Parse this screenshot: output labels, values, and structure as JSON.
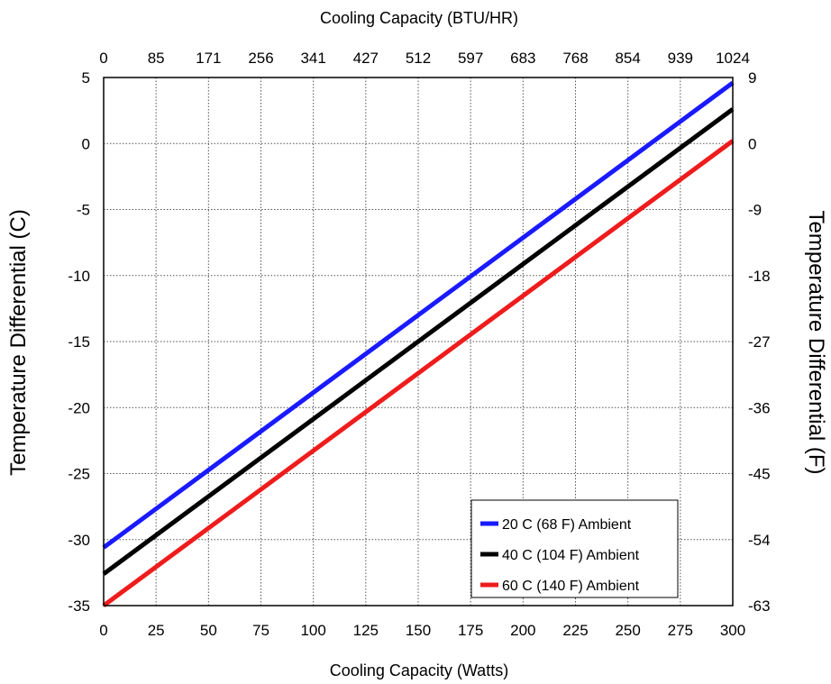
{
  "chart_data": {
    "type": "line",
    "x_bottom": {
      "label": "Cooling Capacity (Watts)",
      "range": [
        0,
        300
      ],
      "ticks": [
        "0",
        "25",
        "50",
        "75",
        "100",
        "125",
        "150",
        "175",
        "200",
        "225",
        "250",
        "275",
        "300"
      ]
    },
    "x_top": {
      "label": "Cooling Capacity (BTU/HR)",
      "ticks": [
        "0",
        "85",
        "171",
        "256",
        "341",
        "427",
        "512",
        "597",
        "683",
        "768",
        "854",
        "939",
        "1024"
      ]
    },
    "y_left": {
      "label": "Temperature Differential (C)",
      "range": [
        -35,
        5
      ],
      "ticks": [
        "5",
        "0",
        "-5",
        "-10",
        "-15",
        "-20",
        "-25",
        "-30",
        "-35"
      ]
    },
    "y_right": {
      "label": "Temperature Differential  (F)",
      "ticks": [
        "9",
        "0",
        "-9",
        "-18",
        "-27",
        "-36",
        "-45",
        "-54",
        "-63"
      ]
    },
    "grid": true,
    "legend_position": "bottom-right",
    "series": [
      {
        "name": "20 C (68 F) Ambient",
        "color": "#1a1aff",
        "x": [
          0,
          300
        ],
        "y": [
          -30.6,
          4.6
        ]
      },
      {
        "name": "40 C (104 F) Ambient",
        "color": "#000000",
        "x": [
          0,
          300
        ],
        "y": [
          -32.6,
          2.6
        ]
      },
      {
        "name": "60 C (140 F) Ambient",
        "color": "#ee1c1c",
        "x": [
          0,
          300
        ],
        "y": [
          -35.0,
          0.2
        ]
      }
    ]
  }
}
